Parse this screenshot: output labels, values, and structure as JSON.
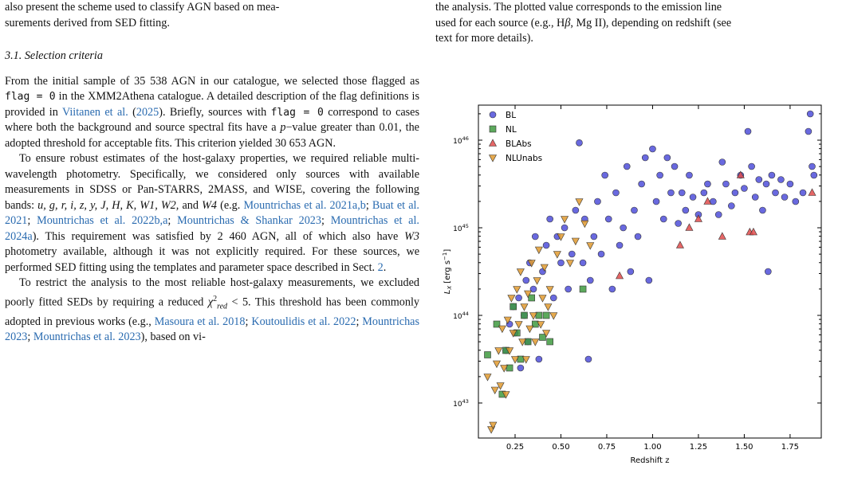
{
  "left_column": {
    "line_top": "also present the scheme used to classify AGN based on mea-",
    "line_top2": "surements derived from SED fitting.",
    "section_heading": "3.1. Selection criteria",
    "p1_a": "From the initial sample of 35 538 AGN in our catalogue, we selected those flagged as ",
    "code_flag": "flag = 0",
    "p1_b": " in the XMM2Athena catalogue. A detailed description of the flag definitions is provided in ",
    "cite_viitanen": "Viitanen et al.",
    "cite_viitanen_year": "2025",
    "p1_c": "). Briefly, sources with ",
    "p1_d": " correspond to cases where both the background and source spectral fits have a ",
    "p_value": "p",
    "p1_e": "−value greater than 0.01, the adopted threshold for acceptable fits. This criterion yielded 30 653 AGN.",
    "p2_a": "To ensure robust estimates of the host-galaxy properties, we required reliable multi-wavelength photometry. Specifically, we considered only sources with available measurements in SDSS or Pan-STARRS, 2MASS, and WISE, covering the following bands: ",
    "bands": "u, g, r, i, z, y, J, H, K, W1, W2, ",
    "p2_and": "and ",
    "band_w4": "W4",
    "p2_eg": " (e.g. ",
    "cite_m2021": "Mountrichas et al. 2021a,b",
    "cite_buat": "Buat et al. 2021",
    "cite_m2022": "Mountrichas et al. 2022b,a",
    "cite_ms2023": "Mountrichas & Shankar 2023",
    "cite_m2024": "Mountrichas et al. 2024a",
    "p2_b": "). This requirement was satisfied by 2 460 AGN, all of which also have ",
    "band_w3": "W3",
    "p2_c": " photometry available, although it was not explicitly required. For these sources, we performed SED fitting using the templates and parameter space described in Sect. ",
    "sect_ref": "2",
    "p3_a": "To restrict the analysis to the most reliable host-galaxy measurements, we excluded poorly fitted SEDs by requiring a reduced ",
    "chi": "χ",
    "chi_sup": "2",
    "chi_sub": "red",
    "p3_b": " < 5. This threshold has been commonly adopted in previous works (e.g., ",
    "cite_masoura": "Masoura et al. 2018",
    "cite_kout": "Koutoulidis et al. 2022",
    "cite_m2023": "Mountrichas 2023",
    "cite_m2023b": "Mountrichas et al. 2023",
    "p3_c": "), based on vi-"
  },
  "right_column": {
    "line1": "the analysis. The plotted value corresponds to the emission line",
    "line2_a": "used for each source (e.g., H",
    "beta": "β",
    "line2_b": ", Mg II), depending on redshift (see",
    "line3": "text for more details)."
  },
  "chart_data": {
    "type": "scatter",
    "xlabel": "Redshift z",
    "ylabel": "L_X [erg s^-1]",
    "ylabel_main": "L",
    "ylabel_sub": "X",
    "ylabel_unit": " [erg s",
    "ylabel_exp": "−1",
    "ylabel_close": "]",
    "xlim": [
      0.05,
      1.92
    ],
    "ylim_log10": [
      42.6,
      46.4
    ],
    "y_scale": "log",
    "x_ticks": [
      "0.25",
      "0.50",
      "0.75",
      "1.00",
      "1.25",
      "1.50",
      "1.75"
    ],
    "x_tick_values": [
      0.25,
      0.5,
      0.75,
      1.0,
      1.25,
      1.5,
      1.75
    ],
    "y_tick_labels": [
      {
        "base": "10",
        "exp": "43",
        "value": 43
      },
      {
        "base": "10",
        "exp": "44",
        "value": 44
      },
      {
        "base": "10",
        "exp": "45",
        "value": 45
      },
      {
        "base": "10",
        "exp": "46",
        "value": 46
      }
    ],
    "legend_position": "top-left",
    "series": [
      {
        "name": "BL",
        "marker": "circle",
        "color": "#4f4fd9",
        "points": [
          [
            0.2,
            43.6
          ],
          [
            0.22,
            43.9
          ],
          [
            0.24,
            44.1
          ],
          [
            0.25,
            43.8
          ],
          [
            0.27,
            44.2
          ],
          [
            0.28,
            43.4
          ],
          [
            0.3,
            44.0
          ],
          [
            0.31,
            44.4
          ],
          [
            0.32,
            43.7
          ],
          [
            0.33,
            44.6
          ],
          [
            0.35,
            44.3
          ],
          [
            0.36,
            44.9
          ],
          [
            0.38,
            43.5
          ],
          [
            0.4,
            44.5
          ],
          [
            0.42,
            44.8
          ],
          [
            0.44,
            45.1
          ],
          [
            0.46,
            44.2
          ],
          [
            0.48,
            44.9
          ],
          [
            0.5,
            44.6
          ],
          [
            0.52,
            45.0
          ],
          [
            0.54,
            44.3
          ],
          [
            0.56,
            44.7
          ],
          [
            0.58,
            45.2
          ],
          [
            0.6,
            45.97
          ],
          [
            0.62,
            44.6
          ],
          [
            0.63,
            45.1
          ],
          [
            0.65,
            43.5
          ],
          [
            0.66,
            44.4
          ],
          [
            0.68,
            44.9
          ],
          [
            0.7,
            45.3
          ],
          [
            0.72,
            44.7
          ],
          [
            0.74,
            45.6
          ],
          [
            0.76,
            45.1
          ],
          [
            0.78,
            44.3
          ],
          [
            0.8,
            45.4
          ],
          [
            0.82,
            44.8
          ],
          [
            0.84,
            45.0
          ],
          [
            0.86,
            45.7
          ],
          [
            0.88,
            44.5
          ],
          [
            0.9,
            45.2
          ],
          [
            0.92,
            44.9
          ],
          [
            0.94,
            45.5
          ],
          [
            0.96,
            45.8
          ],
          [
            0.98,
            44.4
          ],
          [
            1.0,
            45.9
          ],
          [
            1.02,
            45.3
          ],
          [
            1.04,
            45.6
          ],
          [
            1.06,
            45.1
          ],
          [
            1.08,
            45.8
          ],
          [
            1.1,
            45.4
          ],
          [
            1.12,
            45.7
          ],
          [
            1.14,
            45.05
          ],
          [
            1.16,
            45.4
          ],
          [
            1.18,
            45.2
          ],
          [
            1.2,
            45.6
          ],
          [
            1.22,
            45.35
          ],
          [
            1.25,
            45.15
          ],
          [
            1.28,
            45.4
          ],
          [
            1.3,
            45.5
          ],
          [
            1.33,
            45.3
          ],
          [
            1.36,
            45.15
          ],
          [
            1.38,
            45.75
          ],
          [
            1.4,
            45.5
          ],
          [
            1.43,
            45.25
          ],
          [
            1.45,
            45.4
          ],
          [
            1.48,
            45.6
          ],
          [
            1.5,
            45.45
          ],
          [
            1.52,
            46.1
          ],
          [
            1.54,
            45.7
          ],
          [
            1.56,
            45.35
          ],
          [
            1.58,
            45.55
          ],
          [
            1.6,
            45.2
          ],
          [
            1.62,
            45.5
          ],
          [
            1.63,
            44.5
          ],
          [
            1.65,
            45.6
          ],
          [
            1.67,
            45.4
          ],
          [
            1.7,
            45.55
          ],
          [
            1.72,
            45.35
          ],
          [
            1.75,
            45.5
          ],
          [
            1.78,
            45.3
          ],
          [
            1.82,
            45.4
          ],
          [
            1.85,
            46.1
          ],
          [
            1.86,
            46.3
          ],
          [
            1.87,
            45.7
          ],
          [
            1.88,
            45.6
          ]
        ]
      },
      {
        "name": "NL",
        "marker": "square",
        "color": "#3f9a3f",
        "points": [
          [
            0.1,
            43.55
          ],
          [
            0.15,
            43.9
          ],
          [
            0.18,
            43.1
          ],
          [
            0.2,
            43.6
          ],
          [
            0.22,
            43.4
          ],
          [
            0.24,
            44.1
          ],
          [
            0.26,
            43.8
          ],
          [
            0.28,
            43.5
          ],
          [
            0.3,
            44.0
          ],
          [
            0.32,
            43.7
          ],
          [
            0.34,
            44.2
          ],
          [
            0.36,
            43.9
          ],
          [
            0.38,
            44.0
          ],
          [
            0.4,
            43.75
          ],
          [
            0.42,
            44.0
          ],
          [
            0.44,
            43.7
          ],
          [
            0.62,
            44.3
          ]
        ]
      },
      {
        "name": "BLAbs",
        "marker": "triangle-up",
        "color": "#e04b4b",
        "points": [
          [
            0.82,
            44.45
          ],
          [
            1.15,
            44.8
          ],
          [
            1.2,
            45.0
          ],
          [
            1.25,
            45.1
          ],
          [
            1.3,
            45.3
          ],
          [
            1.38,
            44.9
          ],
          [
            1.48,
            45.6
          ],
          [
            1.53,
            44.95
          ],
          [
            1.55,
            44.95
          ],
          [
            1.87,
            45.4
          ]
        ]
      },
      {
        "name": "NLUnabs",
        "marker": "triangle-down",
        "color": "#e09a2f",
        "points": [
          [
            0.1,
            43.3
          ],
          [
            0.12,
            42.7
          ],
          [
            0.13,
            42.75
          ],
          [
            0.14,
            43.15
          ],
          [
            0.15,
            43.45
          ],
          [
            0.16,
            43.6
          ],
          [
            0.17,
            43.2
          ],
          [
            0.18,
            43.85
          ],
          [
            0.19,
            43.4
          ],
          [
            0.2,
            43.1
          ],
          [
            0.21,
            43.95
          ],
          [
            0.22,
            43.6
          ],
          [
            0.23,
            44.2
          ],
          [
            0.24,
            43.8
          ],
          [
            0.25,
            43.5
          ],
          [
            0.26,
            44.3
          ],
          [
            0.27,
            43.9
          ],
          [
            0.28,
            44.5
          ],
          [
            0.29,
            43.7
          ],
          [
            0.3,
            44.1
          ],
          [
            0.31,
            43.5
          ],
          [
            0.32,
            44.25
          ],
          [
            0.33,
            43.85
          ],
          [
            0.34,
            44.6
          ],
          [
            0.35,
            44.0
          ],
          [
            0.36,
            43.7
          ],
          [
            0.37,
            44.4
          ],
          [
            0.38,
            44.75
          ],
          [
            0.39,
            43.9
          ],
          [
            0.4,
            44.2
          ],
          [
            0.41,
            44.55
          ],
          [
            0.42,
            43.8
          ],
          [
            0.43,
            44.1
          ],
          [
            0.44,
            44.3
          ],
          [
            0.46,
            44.0
          ],
          [
            0.48,
            44.7
          ],
          [
            0.5,
            44.9
          ],
          [
            0.52,
            45.1
          ],
          [
            0.55,
            44.6
          ],
          [
            0.58,
            44.85
          ],
          [
            0.6,
            45.3
          ],
          [
            0.63,
            45.05
          ],
          [
            0.66,
            44.8
          ]
        ]
      }
    ]
  }
}
